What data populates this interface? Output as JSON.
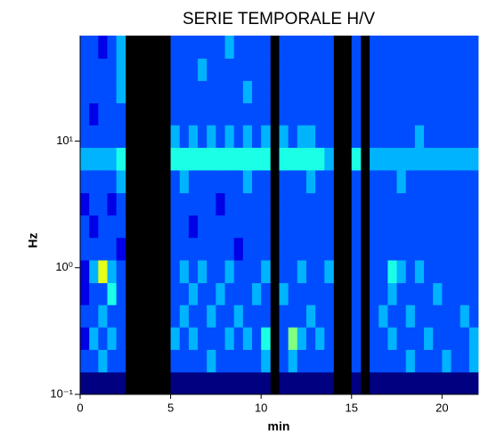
{
  "chart_data": {
    "type": "heatmap",
    "title": "SERIE TEMPORALE H/V",
    "xlabel": "min",
    "ylabel": "Hz",
    "xlim": [
      0,
      22
    ],
    "ylim": [
      0.1,
      68
    ],
    "yscale": "log",
    "colormap": "jet",
    "zlim": [
      0,
      10
    ],
    "missing_color": "#000000",
    "xticks": [
      0,
      5,
      10,
      15,
      20
    ],
    "yticks": [
      {
        "value": 0.1,
        "label": "10⁻¹"
      },
      {
        "value": 1,
        "label": "10⁰"
      },
      {
        "value": 10,
        "label": "10¹"
      }
    ],
    "xbins": [
      0,
      0.5,
      1,
      1.5,
      2,
      2.5,
      3,
      3.5,
      4,
      4.5,
      5,
      5.5,
      6,
      6.5,
      7,
      7.5,
      8,
      8.5,
      9,
      9.5,
      10,
      10.5,
      11,
      11.5,
      12,
      12.5,
      13,
      13.5,
      14,
      14.5,
      15,
      15.5,
      16,
      16.5,
      17,
      17.5,
      18,
      18.5,
      19,
      19.5,
      20,
      20.5,
      21,
      21.5,
      22
    ],
    "ybins": [
      0.1,
      0.15,
      0.226,
      0.34,
      0.51,
      0.76,
      1.15,
      1.73,
      2.6,
      3.9,
      5.9,
      8.9,
      13.4,
      20,
      30,
      45,
      68
    ],
    "z": [
      [
        0,
        2,
        1,
        2,
        1,
        1,
        2,
        2,
        1,
        2,
        3,
        2,
        2,
        2,
        2,
        2
      ],
      [
        0,
        2,
        3,
        2,
        2,
        3,
        2,
        1,
        2,
        2,
        3,
        2,
        1,
        2,
        2,
        2
      ],
      [
        0,
        3,
        2,
        3,
        2,
        6,
        2,
        2,
        2,
        2,
        3,
        2,
        2,
        2,
        2,
        1
      ],
      [
        0,
        2,
        3,
        2,
        4,
        3,
        2,
        2,
        1,
        2,
        3,
        2,
        2,
        2,
        2,
        2
      ],
      [
        0,
        2,
        2,
        2,
        2,
        2,
        1,
        2,
        2,
        3,
        4,
        2,
        2,
        3,
        3,
        3
      ],
      null,
      null,
      null,
      null,
      null,
      [
        0,
        2,
        3,
        2,
        2,
        2,
        2,
        2,
        2,
        2,
        4,
        3,
        2,
        2,
        2,
        2
      ],
      [
        0,
        2,
        2,
        3,
        2,
        3,
        2,
        2,
        2,
        3,
        4,
        2,
        2,
        2,
        2,
        2
      ],
      [
        0,
        2,
        3,
        2,
        3,
        2,
        2,
        1,
        2,
        2,
        4,
        3,
        2,
        2,
        2,
        2
      ],
      [
        0,
        2,
        2,
        2,
        2,
        3,
        2,
        2,
        2,
        2,
        4,
        2,
        2,
        2,
        3,
        2
      ],
      [
        0,
        3,
        2,
        3,
        2,
        2,
        2,
        2,
        2,
        2,
        4,
        3,
        2,
        2,
        2,
        2
      ],
      [
        0,
        2,
        2,
        2,
        3,
        2,
        2,
        2,
        1,
        2,
        4,
        2,
        2,
        2,
        2,
        2
      ],
      [
        0,
        2,
        3,
        2,
        2,
        3,
        2,
        2,
        2,
        2,
        4,
        3,
        2,
        2,
        2,
        3
      ],
      [
        0,
        2,
        2,
        3,
        2,
        2,
        1,
        2,
        2,
        2,
        4,
        2,
        2,
        2,
        2,
        2
      ],
      [
        0,
        2,
        3,
        2,
        2,
        2,
        2,
        2,
        2,
        3,
        4,
        3,
        2,
        3,
        2,
        2
      ],
      [
        0,
        2,
        2,
        2,
        3,
        2,
        2,
        2,
        2,
        2,
        4,
        2,
        2,
        2,
        2,
        2
      ],
      [
        0,
        3,
        4,
        2,
        2,
        3,
        2,
        2,
        2,
        2,
        4,
        3,
        2,
        2,
        2,
        2
      ],
      null,
      [
        0,
        2,
        2,
        2,
        3,
        2,
        2,
        2,
        2,
        2,
        4,
        3,
        2,
        2,
        2,
        2
      ],
      [
        0,
        3,
        5,
        2,
        2,
        2,
        2,
        2,
        2,
        2,
        4,
        2,
        2,
        2,
        2,
        2
      ],
      [
        0,
        2,
        3,
        2,
        2,
        3,
        2,
        2,
        2,
        2,
        4,
        3,
        2,
        2,
        2,
        2
      ],
      [
        0,
        2,
        2,
        3,
        2,
        2,
        2,
        2,
        2,
        3,
        4,
        3,
        2,
        2,
        2,
        2
      ],
      [
        0,
        2,
        3,
        2,
        2,
        2,
        2,
        2,
        2,
        2,
        4,
        2,
        2,
        2,
        2,
        2
      ],
      [
        0,
        2,
        2,
        2,
        2,
        3,
        2,
        2,
        2,
        2,
        3,
        2,
        2,
        2,
        2,
        2
      ],
      null,
      null,
      [
        0,
        2,
        2,
        2,
        2,
        2,
        2,
        2,
        2,
        2,
        4,
        2,
        2,
        2,
        2,
        2
      ],
      null,
      [
        0,
        2,
        2,
        2,
        2,
        2,
        2,
        2,
        2,
        2,
        3,
        2,
        2,
        2,
        2,
        2
      ],
      [
        0,
        2,
        2,
        3,
        2,
        2,
        2,
        2,
        2,
        2,
        3,
        2,
        2,
        2,
        2,
        2
      ],
      [
        0,
        2,
        3,
        2,
        3,
        4,
        2,
        2,
        2,
        2,
        3,
        2,
        2,
        2,
        2,
        2
      ],
      [
        0,
        2,
        2,
        2,
        2,
        3,
        2,
        2,
        2,
        3,
        3,
        2,
        2,
        2,
        2,
        2
      ],
      [
        0,
        3,
        2,
        3,
        2,
        2,
        2,
        2,
        2,
        2,
        3,
        2,
        2,
        2,
        2,
        2
      ],
      [
        0,
        2,
        2,
        2,
        2,
        3,
        2,
        2,
        2,
        2,
        3,
        3,
        2,
        2,
        2,
        2
      ],
      [
        0,
        2,
        3,
        2,
        2,
        2,
        2,
        2,
        2,
        2,
        3,
        2,
        2,
        2,
        2,
        2
      ],
      [
        0,
        2,
        2,
        2,
        3,
        2,
        2,
        2,
        2,
        2,
        3,
        2,
        2,
        2,
        2,
        2
      ],
      [
        0,
        3,
        2,
        2,
        2,
        2,
        2,
        2,
        2,
        2,
        3,
        2,
        2,
        2,
        2,
        2
      ],
      [
        0,
        2,
        2,
        2,
        2,
        2,
        2,
        2,
        2,
        2,
        3,
        2,
        2,
        2,
        2,
        2
      ],
      [
        0,
        2,
        2,
        3,
        2,
        2,
        2,
        2,
        2,
        2,
        3,
        2,
        2,
        2,
        2,
        2
      ],
      [
        0,
        3,
        3,
        2,
        2,
        2,
        2,
        2,
        2,
        2,
        3,
        2,
        2,
        2,
        2,
        2
      ]
    ]
  }
}
